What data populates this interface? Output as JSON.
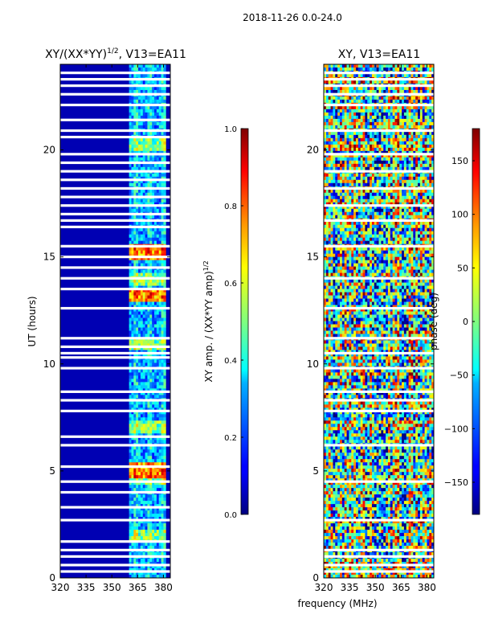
{
  "figure": {
    "suptitle": "2018-11-26 0.0-24.0",
    "xlabel_shared": "frequency (MHz)"
  },
  "chart_data": [
    {
      "type": "heatmap",
      "id": "amp",
      "title": "XY/(XX*YY)",
      "title_sup": "1/2",
      "title_suffix": ", V13=EA11",
      "xlabel": "",
      "ylabel": "UT (hours)",
      "xlim": [
        320,
        384
      ],
      "ylim": [
        0,
        24
      ],
      "xticks": [
        320,
        335,
        350,
        365,
        380
      ],
      "yticks": [
        0,
        5,
        10,
        15,
        20
      ],
      "colorbar": {
        "label": "XY amp. / (XX*YY amp)",
        "label_sup": "1/2",
        "range": [
          0.0,
          1.0
        ],
        "ticks": [
          "0.0",
          "0.2",
          "0.4",
          "0.6",
          "0.8",
          "1.0"
        ],
        "colormap": "jet"
      },
      "hot_band_mhz": [
        361,
        381
      ],
      "background_value": 0.05,
      "bright_hours": [
        5.0,
        13.2,
        15.2
      ],
      "mid_hours": [
        2.0,
        4.6,
        7.0,
        11.0,
        13.9,
        20.2
      ],
      "blank_hours": [
        0.3,
        0.6,
        1.0,
        1.3,
        1.7,
        2.7,
        3.3,
        4.0,
        4.5,
        5.2,
        6.2,
        6.6,
        7.8,
        8.3,
        8.7,
        9.8,
        10.3,
        10.5,
        10.8,
        11.2,
        12.6,
        13.5,
        14.0,
        14.5,
        15.0,
        15.5,
        16.4,
        16.7,
        17.0,
        17.4,
        17.8,
        18.2,
        18.6,
        19.0,
        19.4,
        19.8,
        20.6,
        20.9,
        21.4,
        22.1,
        22.6,
        23.0,
        23.3,
        23.6
      ]
    },
    {
      "type": "heatmap",
      "id": "phase",
      "title": "XY, V13=EA11",
      "xlabel": "frequency (MHz)",
      "ylabel": "",
      "xlim": [
        320,
        384
      ],
      "ylim": [
        0,
        24
      ],
      "xticks": [
        320,
        335,
        350,
        365,
        380
      ],
      "yticks": [
        0,
        5,
        10,
        15,
        20
      ],
      "colorbar": {
        "label": "phase (deg)",
        "range": [
          -180,
          180
        ],
        "ticks": [
          "−150",
          "−100",
          "−50",
          "0",
          "50",
          "100",
          "150"
        ],
        "tick_values": [
          -150,
          -100,
          -50,
          0,
          50,
          100,
          150
        ],
        "colormap": "jet"
      },
      "blank_hours": [
        0.3,
        0.6,
        1.0,
        1.3,
        2.7,
        4.5,
        6.2,
        7.8,
        8.3,
        8.7,
        9.8,
        10.5,
        11.2,
        12.6,
        14.0,
        15.5,
        16.7,
        17.4,
        18.2,
        19.0,
        19.8,
        20.9,
        22.1,
        22.6,
        23.0,
        23.3,
        23.6
      ]
    }
  ],
  "colors": {
    "background": "#ffffff",
    "axis": "#000000",
    "blank_line": "#ffffff"
  }
}
